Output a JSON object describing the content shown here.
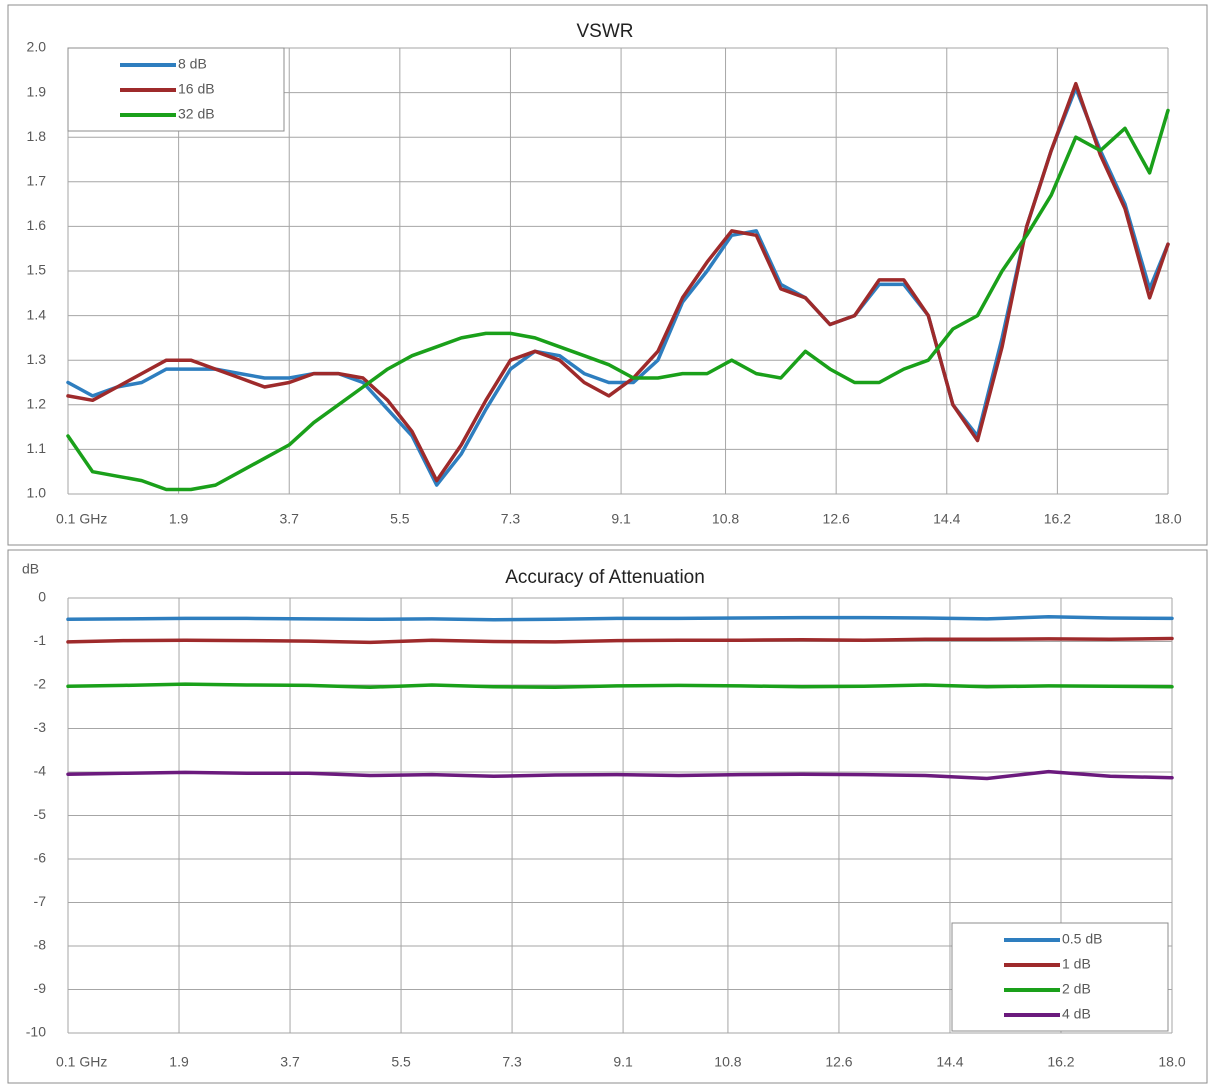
{
  "chart_data": [
    {
      "type": "line",
      "title": "VSWR",
      "legend": "upper left",
      "grid": true,
      "x": [
        0.1,
        0.5,
        0.9,
        1.3,
        1.7,
        2.1,
        2.5,
        2.9,
        3.3,
        3.7,
        4.1,
        4.5,
        4.9,
        5.3,
        5.7,
        6.1,
        6.5,
        6.9,
        7.3,
        7.7,
        8.1,
        8.5,
        8.9,
        9.3,
        9.7,
        10.1,
        10.5,
        10.9,
        11.3,
        11.7,
        12.1,
        12.5,
        12.9,
        13.3,
        13.7,
        14.1,
        14.5,
        14.9,
        15.3,
        15.7,
        16.1,
        16.5,
        16.9,
        17.3,
        17.7,
        18.0
      ],
      "xlim": [
        0.1,
        18.0
      ],
      "xticks": [
        {
          "value": 0.1,
          "label": "0.1  GHz"
        },
        1.9,
        3.7,
        5.5,
        7.3,
        9.1,
        10.8,
        12.6,
        14.4,
        16.2,
        {
          "value": 18,
          "label": "18.0"
        }
      ],
      "ylim": [
        1,
        2
      ],
      "yticks": [
        {
          "value": 1,
          "label": "1.0"
        },
        1.1,
        1.2,
        1.3,
        1.4,
        1.5,
        1.6,
        1.7,
        1.8,
        1.9,
        {
          "value": 2,
          "label": "2.0"
        }
      ],
      "series": [
        {
          "name": "8 dB",
          "color": "#2e7ebf",
          "values": [
            1.25,
            1.22,
            1.24,
            1.25,
            1.28,
            1.28,
            1.28,
            1.27,
            1.26,
            1.26,
            1.27,
            1.27,
            1.25,
            1.19,
            1.13,
            1.02,
            1.09,
            1.19,
            1.28,
            1.32,
            1.31,
            1.27,
            1.25,
            1.25,
            1.3,
            1.43,
            1.5,
            1.58,
            1.59,
            1.47,
            1.44,
            1.38,
            1.4,
            1.47,
            1.47,
            1.4,
            1.2,
            1.13,
            1.35,
            1.6,
            1.77,
            1.91,
            1.77,
            1.65,
            1.46,
            1.56
          ]
        },
        {
          "name": "16 dB",
          "color": "#9e2a2b",
          "values": [
            1.22,
            1.21,
            1.24,
            1.27,
            1.3,
            1.3,
            1.28,
            1.26,
            1.24,
            1.25,
            1.27,
            1.27,
            1.26,
            1.21,
            1.14,
            1.03,
            1.11,
            1.21,
            1.3,
            1.32,
            1.3,
            1.25,
            1.22,
            1.26,
            1.32,
            1.44,
            1.52,
            1.59,
            1.58,
            1.46,
            1.44,
            1.38,
            1.4,
            1.48,
            1.48,
            1.4,
            1.2,
            1.12,
            1.33,
            1.6,
            1.77,
            1.92,
            1.76,
            1.64,
            1.44,
            1.56
          ]
        },
        {
          "name": "32 dB",
          "color": "#1aa01a",
          "values": [
            1.13,
            1.05,
            1.04,
            1.03,
            1.01,
            1.01,
            1.02,
            1.05,
            1.08,
            1.11,
            1.16,
            1.2,
            1.24,
            1.28,
            1.31,
            1.33,
            1.35,
            1.36,
            1.36,
            1.35,
            1.33,
            1.31,
            1.29,
            1.26,
            1.26,
            1.27,
            1.27,
            1.3,
            1.27,
            1.26,
            1.32,
            1.28,
            1.25,
            1.25,
            1.28,
            1.3,
            1.37,
            1.4,
            1.5,
            1.58,
            1.67,
            1.8,
            1.77,
            1.82,
            1.72,
            1.86
          ]
        }
      ]
    },
    {
      "type": "line",
      "title": "Accuracy of Attenuation",
      "ylabel": "dB",
      "legend": "lower right",
      "grid": true,
      "x": [
        0.1,
        1,
        2,
        3,
        4,
        5,
        6,
        7,
        8,
        9,
        10,
        11,
        12,
        13,
        14,
        15,
        16,
        17,
        18.0
      ],
      "xlim": [
        0.1,
        18.0
      ],
      "xticks": [
        {
          "value": 0.1,
          "label": "0.1  GHz"
        },
        1.9,
        3.7,
        5.5,
        7.3,
        9.1,
        10.8,
        12.6,
        14.4,
        16.2,
        {
          "value": 18,
          "label": "18.0"
        }
      ],
      "ylim": [
        -10,
        0
      ],
      "yticks": [
        0,
        -1,
        -2,
        -3,
        -4,
        -5,
        -6,
        -7,
        -8,
        -9,
        -10
      ],
      "series": [
        {
          "name": "0.5 dB",
          "color": "#2e7ebf",
          "values": [
            -0.49,
            -0.48,
            -0.47,
            -0.47,
            -0.48,
            -0.49,
            -0.48,
            -0.5,
            -0.49,
            -0.47,
            -0.47,
            -0.46,
            -0.45,
            -0.45,
            -0.46,
            -0.48,
            -0.43,
            -0.46,
            -0.47
          ]
        },
        {
          "name": "1 dB",
          "color": "#9e2a2b",
          "values": [
            -1.01,
            -0.98,
            -0.97,
            -0.98,
            -0.99,
            -1.02,
            -0.97,
            -1.0,
            -1.01,
            -0.98,
            -0.97,
            -0.97,
            -0.96,
            -0.97,
            -0.95,
            -0.95,
            -0.94,
            -0.95,
            -0.93
          ]
        },
        {
          "name": "2 dB",
          "color": "#1aa01a",
          "values": [
            -2.03,
            -2.01,
            -1.98,
            -2.0,
            -2.01,
            -2.05,
            -2.0,
            -2.04,
            -2.05,
            -2.02,
            -2.01,
            -2.02,
            -2.04,
            -2.03,
            -2.0,
            -2.04,
            -2.02,
            -2.03,
            -2.04
          ]
        },
        {
          "name": "4 dB",
          "color": "#6b1a7d",
          "values": [
            -4.05,
            -4.03,
            -4.01,
            -4.03,
            -4.03,
            -4.08,
            -4.06,
            -4.1,
            -4.07,
            -4.06,
            -4.08,
            -4.06,
            -4.05,
            -4.06,
            -4.08,
            -4.15,
            -3.99,
            -4.1,
            -4.13
          ]
        }
      ]
    }
  ]
}
